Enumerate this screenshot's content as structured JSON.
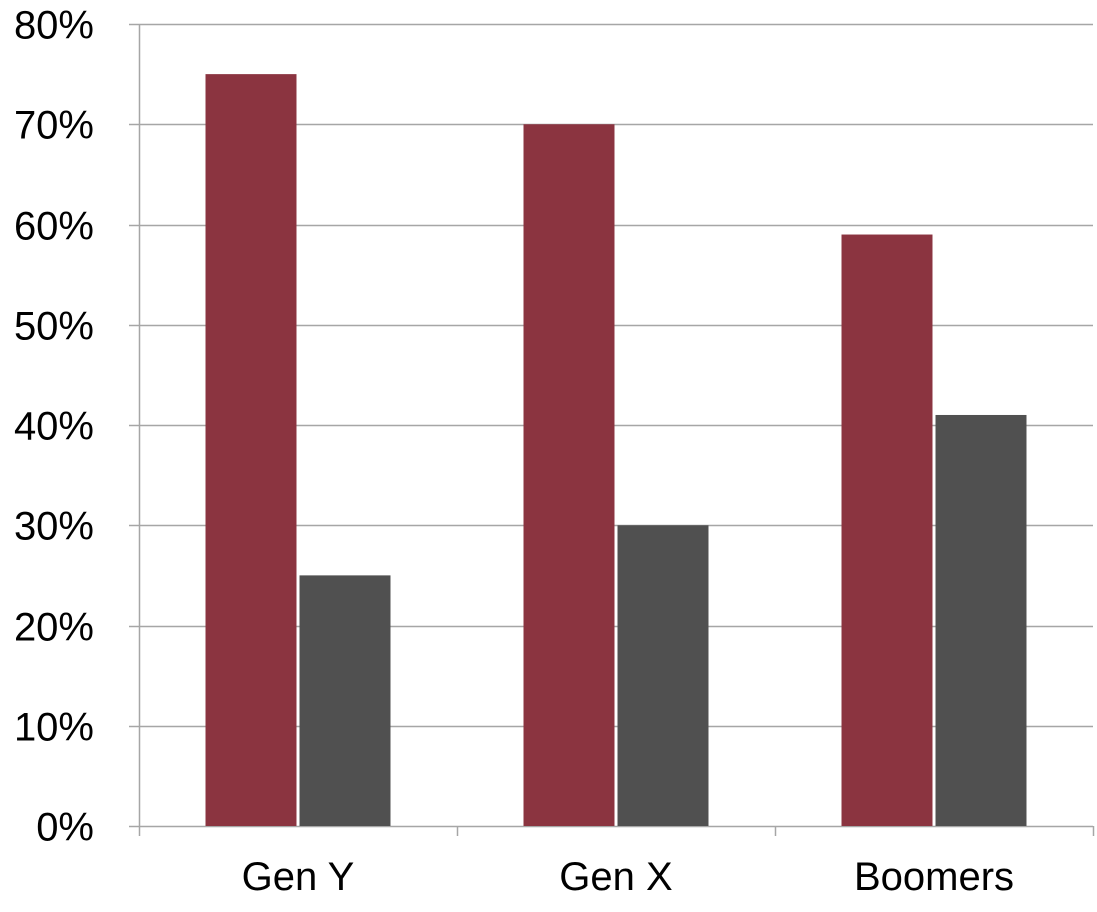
{
  "chart_data": {
    "type": "bar",
    "categories": [
      "Gen Y",
      "Gen X",
      "Boomers"
    ],
    "series": [
      {
        "values": [
          75,
          70,
          59
        ],
        "color": "#8B3440"
      },
      {
        "values": [
          25,
          30,
          41
        ],
        "color": "#505050"
      }
    ],
    "ylim": [
      0,
      80
    ],
    "yticks": [
      0,
      10,
      20,
      30,
      40,
      50,
      60,
      70,
      80
    ],
    "ytick_labels": [
      "0%",
      "10%",
      "20%",
      "30%",
      "40%",
      "50%",
      "60%",
      "70%",
      "80%"
    ],
    "grid": true,
    "legend": "none",
    "gridline_color": "#A6A6A6",
    "axis_color": "#A6A6A6"
  }
}
